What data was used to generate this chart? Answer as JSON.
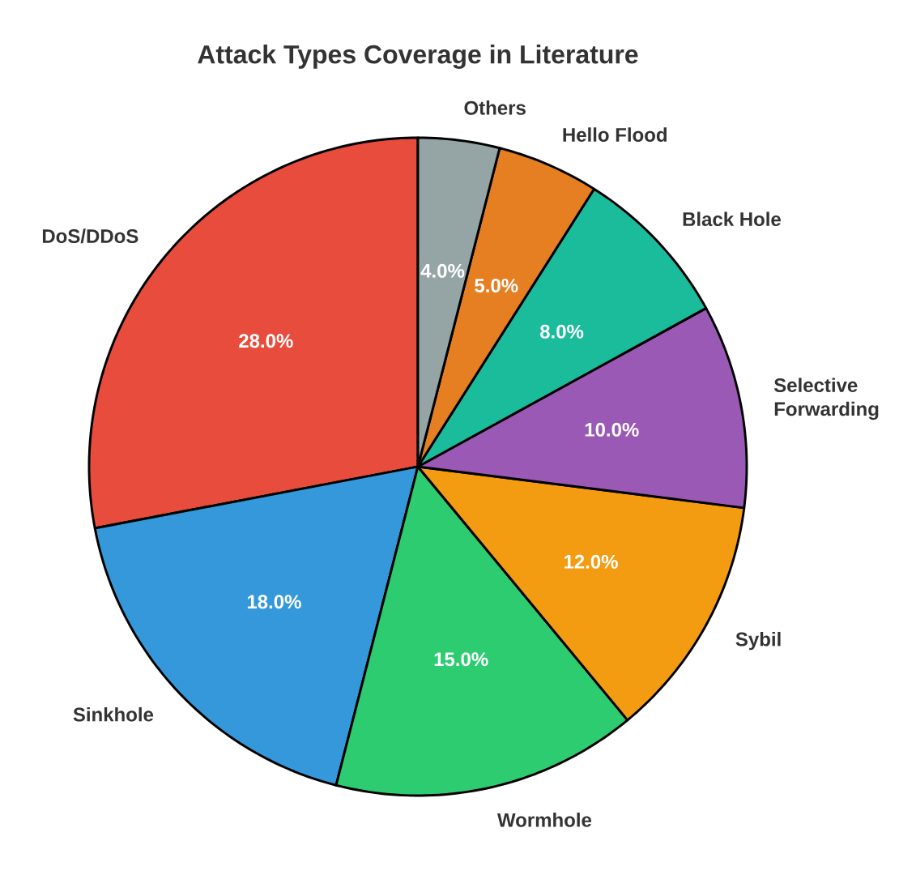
{
  "chart_data": {
    "type": "pie",
    "title": "Attack Types Coverage in Literature",
    "categories": [
      "DoS/DDoS",
      "Sinkhole",
      "Wormhole",
      "Sybil",
      "Selective Forwarding",
      "Black Hole",
      "Hello Flood",
      "Others"
    ],
    "values": [
      28,
      18,
      15,
      12,
      10,
      8,
      5,
      4
    ],
    "value_labels": [
      "28.0%",
      "18.0%",
      "15.0%",
      "12.0%",
      "10.0%",
      "8.0%",
      "5.0%",
      "4.0%"
    ],
    "colors": [
      "#e74c3c",
      "#3498db",
      "#2ecc71",
      "#f39c12",
      "#9b59b6",
      "#1abc9c",
      "#e67e22",
      "#95a5a6"
    ]
  }
}
